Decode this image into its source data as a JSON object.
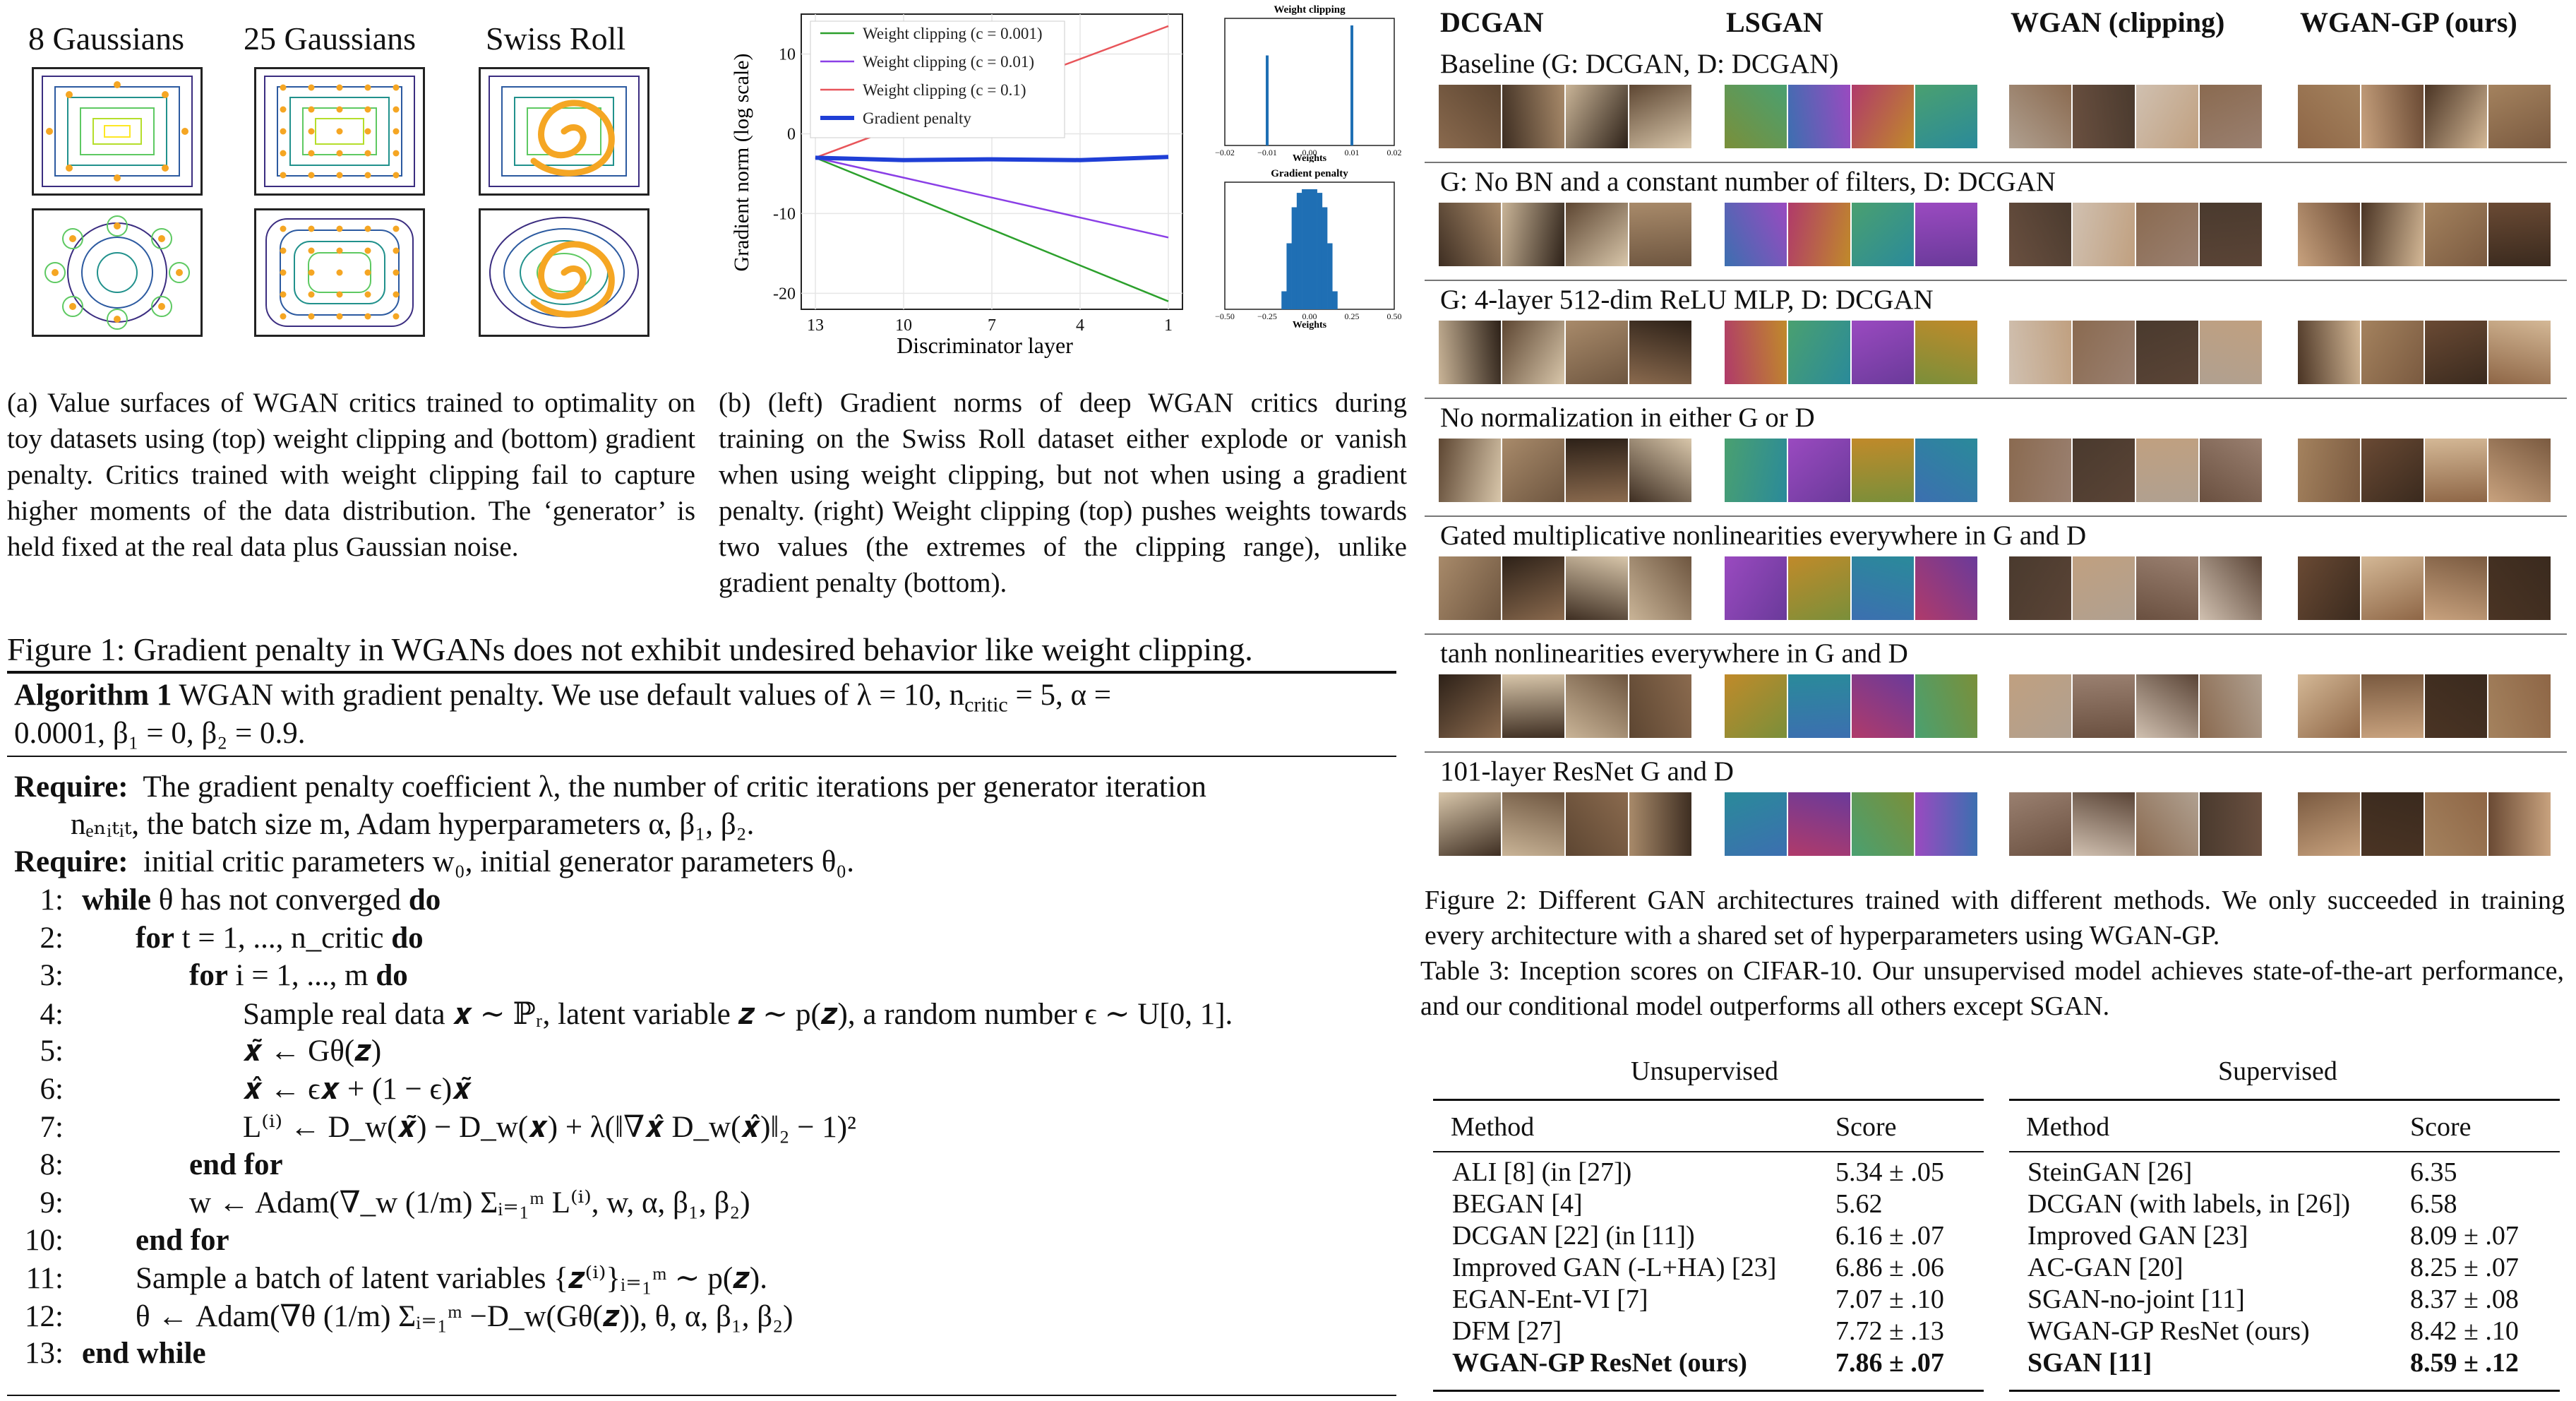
{
  "figure1": {
    "toy_titles": [
      "8 Gaussians",
      "25 Gaussians",
      "Swiss Roll"
    ],
    "caption_a": "(a)  Value surfaces of WGAN critics trained to optimality on toy datasets using (top) weight clipping and (bottom) gradient penalty.  Critics trained with weight clipping fail to capture higher moments of the data distribution. The ‘generator’ is held fixed at the real data plus Gaussian noise.",
    "caption_b": "(b)  (left) Gradient norms of deep WGAN critics during training on the Swiss Roll dataset either explode or vanish when using weight clipping, but not when using a gradient penalty. (right) Weight clipping (top) pushes weights towards two values (the extremes of the clipping range), unlike gradient penalty (bottom).",
    "main_caption": "Figure 1: Gradient penalty in WGANs does not exhibit undesired behavior like weight clipping."
  },
  "chart_data": [
    {
      "type": "line",
      "xlabel": "Discriminator layer",
      "ylabel": "Gradient norm (log scale)",
      "x_ticks": [
        13,
        10,
        7,
        4,
        1
      ],
      "y_ticks": [
        10,
        0,
        -10,
        -20
      ],
      "xlim": [
        13,
        1
      ],
      "ylim": [
        -22,
        15
      ],
      "legend_position": "top-left",
      "series": [
        {
          "name": "Weight clipping (c = 0.001)",
          "color": "#2ca02c",
          "x": [
            13,
            1
          ],
          "y": [
            -3,
            -21
          ]
        },
        {
          "name": "Weight clipping (c = 0.01)",
          "color": "#8a3fe6",
          "x": [
            13,
            1
          ],
          "y": [
            -3,
            -13
          ]
        },
        {
          "name": "Weight clipping (c = 0.1)",
          "color": "#e8555a",
          "x": [
            13,
            1
          ],
          "y": [
            -3,
            13.5
          ]
        },
        {
          "name": "Gradient penalty",
          "color": "#1f3fd6",
          "x": [
            13,
            10,
            7,
            4,
            1
          ],
          "y": [
            -3,
            -3.3,
            -3.2,
            -3.3,
            -2.9
          ]
        }
      ]
    },
    {
      "type": "bar",
      "title": "Weight clipping",
      "xlabel": "Weights",
      "x_ticks": [
        "−0.02",
        "−0.01",
        "0.00",
        "0.01",
        "0.02"
      ],
      "xlim": [
        -0.02,
        0.02
      ],
      "x": [
        -0.01,
        0.01
      ],
      "values": [
        0.75,
        1.0
      ],
      "color": "#1f6fb4"
    },
    {
      "type": "bar",
      "title": "Gradient penalty",
      "xlabel": "Weights",
      "x_ticks": [
        "−0.50",
        "−0.25",
        "0.00",
        "0.25",
        "0.50"
      ],
      "xlim": [
        -0.5,
        0.5
      ],
      "x": [
        -0.15,
        -0.12,
        -0.09,
        -0.06,
        -0.03,
        0.0,
        0.03,
        0.06,
        0.09,
        0.12,
        0.15
      ],
      "values": [
        0.15,
        0.55,
        0.85,
        0.97,
        1.0,
        1.0,
        1.0,
        0.97,
        0.85,
        0.55,
        0.15
      ],
      "color": "#1f6fb4"
    }
  ],
  "algorithm": {
    "title_bold": "Algorithm 1",
    "title_rest": " WGAN with gradient penalty.  We use default values of λ = 10, n",
    "title_sub": "critic",
    "title_rest2": " = 5, α =",
    "title_line2": "0.0001, β₁ = 0, β₂ = 0.9.",
    "require_label": "Require:",
    "require1": "The gradient penalty coefficient λ, the number of critic iterations per generator iteration",
    "require1b": "nₑₙᵢₜᵢₜ, the batch size m, Adam hyperparameters α, β₁, β₂.",
    "require2": "initial critic parameters w₀, initial generator parameters θ₀.",
    "lines": [
      {
        "n": "1:",
        "indent": 0,
        "kw": "while",
        "text": " θ has not converged ",
        "kw2": "do"
      },
      {
        "n": "2:",
        "indent": 1,
        "kw": "for",
        "text": " t = 1, ..., n_critic ",
        "kw2": "do"
      },
      {
        "n": "3:",
        "indent": 2,
        "kw": "for",
        "text": " i = 1, ..., m ",
        "kw2": "do"
      },
      {
        "n": "4:",
        "indent": 3,
        "kw": "",
        "text": "Sample real data 𝒙 ∼ ℙᵣ, latent variable 𝒛 ∼ p(𝒛), a random number ϵ ∼ U[0, 1].",
        "kw2": ""
      },
      {
        "n": "5:",
        "indent": 3,
        "kw": "",
        "text": "𝒙̃ ← Gθ(𝒛)",
        "kw2": ""
      },
      {
        "n": "6:",
        "indent": 3,
        "kw": "",
        "text": "𝒙̂ ← ϵ𝒙 + (1 − ϵ)𝒙̃",
        "kw2": ""
      },
      {
        "n": "7:",
        "indent": 3,
        "kw": "",
        "text": "L⁽ⁱ⁾ ← D_w(𝒙̃) − D_w(𝒙) + λ(‖∇𝒙̂ D_w(𝒙̂)‖₂ − 1)²",
        "kw2": ""
      },
      {
        "n": "8:",
        "indent": 2,
        "kw": "end for",
        "text": "",
        "kw2": ""
      },
      {
        "n": "9:",
        "indent": 2,
        "kw": "",
        "text": "w ← Adam(∇_w (1/m) Σᵢ₌₁ᵐ L⁽ⁱ⁾, w, α, β₁, β₂)",
        "kw2": ""
      },
      {
        "n": "10:",
        "indent": 1,
        "kw": "end for",
        "text": "",
        "kw2": ""
      },
      {
        "n": "11:",
        "indent": 1,
        "kw": "",
        "text": "Sample a batch of latent variables {𝒛⁽ⁱ⁾}ᵢ₌₁ᵐ ∼ p(𝒛).",
        "kw2": ""
      },
      {
        "n": "12:",
        "indent": 1,
        "kw": "",
        "text": "θ ← Adam(∇θ (1/m) Σᵢ₌₁ᵐ −D_w(Gθ(𝒛)), θ, α, β₁, β₂)",
        "kw2": ""
      },
      {
        "n": "13:",
        "indent": 0,
        "kw": "end while",
        "text": "",
        "kw2": ""
      }
    ]
  },
  "figure2": {
    "columns": [
      "DCGAN",
      "LSGAN",
      "WGAN (clipping)",
      "WGAN-GP (ours)"
    ],
    "rows": [
      "Baseline (G: DCGAN, D: DCGAN)",
      "G: No BN and a constant number of filters, D: DCGAN",
      "G: 4-layer 512-dim ReLU MLP, D: DCGAN",
      "No normalization in either G or D",
      "Gated multiplicative nonlinearities everywhere in G and D",
      "tanh nonlinearities everywhere in G and D",
      "101-layer ResNet G and D"
    ],
    "caption": "Figure 2:  Different GAN architectures trained with different methods. We only succeeded in training every architecture with a shared set of hyperparameters using WGAN-GP."
  },
  "table3": {
    "caption": "Table 3:  Inception scores on CIFAR-10.  Our unsupervised model achieves state-of-the-art performance, and our conditional model outperforms all others except SGAN.",
    "unsupervised": {
      "title": "Unsupervised",
      "headers": [
        "Method",
        "Score"
      ],
      "rows": [
        {
          "method": "ALI [8] (in [27])",
          "score": "5.34 ± .05",
          "bold": false
        },
        {
          "method": "BEGAN [4]",
          "score": "5.62",
          "bold": false
        },
        {
          "method": "DCGAN [22] (in [11])",
          "score": "6.16 ± .07",
          "bold": false
        },
        {
          "method": "Improved GAN (-L+HA) [23]",
          "score": "6.86 ± .06",
          "bold": false
        },
        {
          "method": "EGAN-Ent-VI [7]",
          "score": "7.07 ± .10",
          "bold": false
        },
        {
          "method": "DFM [27]",
          "score": "7.72 ± .13",
          "bold": false
        },
        {
          "method": "WGAN-GP ResNet (ours)",
          "score": "7.86 ± .07",
          "bold": true
        }
      ]
    },
    "supervised": {
      "title": "Supervised",
      "headers": [
        "Method",
        "Score"
      ],
      "rows": [
        {
          "method": "SteinGAN [26]",
          "score": "6.35",
          "bold": false
        },
        {
          "method": "DCGAN (with labels, in [26])",
          "score": "6.58",
          "bold": false
        },
        {
          "method": "Improved GAN [23]",
          "score": "8.09 ± .07",
          "bold": false
        },
        {
          "method": "AC-GAN [20]",
          "score": "8.25 ± .07",
          "bold": false
        },
        {
          "method": "SGAN-no-joint [11]",
          "score": "8.37 ± .08",
          "bold": false
        },
        {
          "method": "WGAN-GP ResNet (ours)",
          "score": "8.42 ± .10",
          "bold": false
        },
        {
          "method": "SGAN [11]",
          "score": "8.59 ± .12",
          "bold": true
        }
      ]
    }
  }
}
